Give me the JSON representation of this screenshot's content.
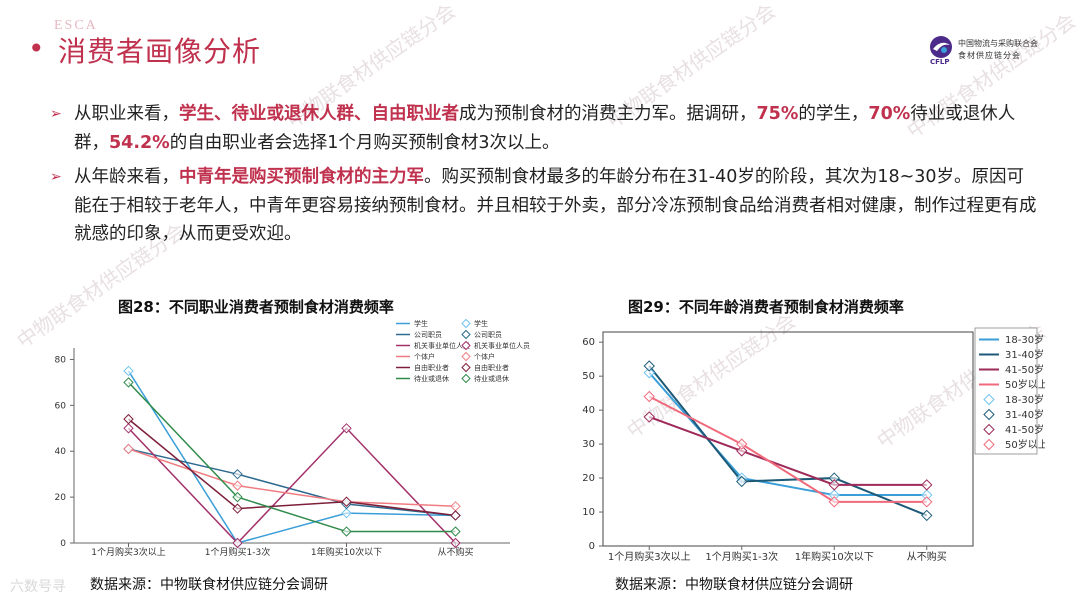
{
  "header": {
    "esca": "ESCA",
    "title": "消费者画像分析",
    "logo": {
      "abbr": "CFLP",
      "line1": "中国物流与采购联合会",
      "line2": "食材供应链分会"
    }
  },
  "watermark": "中物联食材供应链分会",
  "bottom_logo": "六数号寻",
  "bullets": [
    {
      "segments": [
        {
          "text": "从职业来看，",
          "hl": false
        },
        {
          "text": "学生、待业或退休人群、自由职业者",
          "hl": true
        },
        {
          "text": "成为预制食材的消费主力军。据调研，",
          "hl": false
        },
        {
          "text": "75%",
          "hl": true
        },
        {
          "text": "的学生，",
          "hl": false
        },
        {
          "text": "70%",
          "hl": true
        },
        {
          "text": "待业或退休人群，",
          "hl": false
        },
        {
          "text": "54.2%",
          "hl": true
        },
        {
          "text": "的自由职业者会选择1个月购买预制食材3次以上。",
          "hl": false
        }
      ]
    },
    {
      "segments": [
        {
          "text": "从年龄来看，",
          "hl": false
        },
        {
          "text": "中青年是购买预制食材的主力军",
          "hl": true
        },
        {
          "text": "。购买预制食材最多的年龄分布在31-40岁的阶段，其次为18~30岁。原因可能在于相较于老年人，中青年更容易接纳预制食材。并且相较于外卖，部分冷冻预制食品给消费者相对健康，制作过程更有成就感的印象，从而更受欢迎。",
          "hl": false
        }
      ]
    }
  ],
  "chart_data": [
    {
      "type": "line",
      "title": "图28：不同职业消费者预制食材消费频率",
      "source": "数据来源：中物联食材供应链分会调研",
      "categories": [
        "1个月购买3次以上",
        "1个月购买1-3次",
        "1年购买10次以下",
        "从不购买"
      ],
      "ylim": [
        0,
        85
      ],
      "yticks": [
        0,
        20,
        40,
        60,
        80
      ],
      "legend": "top-right",
      "series": [
        {
          "name": "学生",
          "color": "#3a9ed8",
          "marker_color": "#6fc3ef",
          "values": [
            75,
            0,
            13,
            12
          ]
        },
        {
          "name": "公司职员",
          "color": "#2d6a8f",
          "marker_color": "#2d6a8f",
          "values": [
            41,
            30,
            17,
            12
          ]
        },
        {
          "name": "机关事业单位人员",
          "color": "#a2306a",
          "marker_color": "#a2306a",
          "values": [
            50,
            0,
            50,
            0
          ]
        },
        {
          "name": "个体户",
          "color": "#f07c82",
          "marker_color": "#f07c82",
          "values": [
            41,
            25,
            18,
            16
          ]
        },
        {
          "name": "自由职业者",
          "color": "#7d1f3a",
          "marker_color": "#7d1f3a",
          "values": [
            54,
            15,
            18,
            12
          ]
        },
        {
          "name": "待业或退休",
          "color": "#2e8b4a",
          "marker_color": "#2e8b4a",
          "values": [
            70,
            20,
            5,
            5
          ]
        }
      ]
    },
    {
      "type": "line",
      "title": "图29：不同年龄消费者预制食材消费频率",
      "source": "数据来源：中物联食材供应链分会调研",
      "categories": [
        "1个月购买3次以上",
        "1个月购买1-3次",
        "1年购买10次以下",
        "从不购买"
      ],
      "ylim": [
        0,
        63
      ],
      "yticks": [
        0,
        10,
        20,
        30,
        40,
        50,
        60
      ],
      "legend": "top-right",
      "series": [
        {
          "name": "18-30岁",
          "color": "#3a9ed8",
          "marker_color": "#6fc3ef",
          "values": [
            51,
            20,
            15,
            15
          ]
        },
        {
          "name": "31-40岁",
          "color": "#1d5a78",
          "marker_color": "#1d5a78",
          "values": [
            53,
            19,
            20,
            9
          ]
        },
        {
          "name": "41-50岁",
          "color": "#9e2a5a",
          "marker_color": "#9e2a5a",
          "values": [
            38,
            28,
            18,
            18
          ]
        },
        {
          "name": "50岁以上",
          "color": "#f06a7c",
          "marker_color": "#f06a7c",
          "values": [
            44,
            30,
            13,
            13
          ]
        }
      ]
    }
  ]
}
